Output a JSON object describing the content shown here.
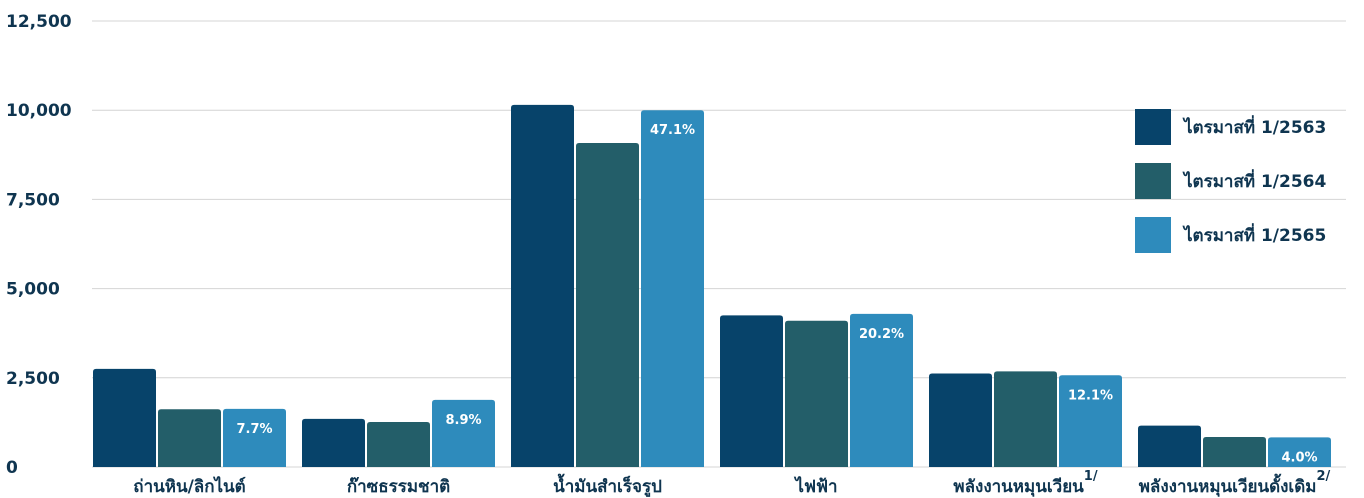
{
  "chart_data": {
    "type": "bar",
    "categories": [
      {
        "label": "ถ่านหิน/ลิกไนต์",
        "sup": ""
      },
      {
        "label": "ก๊าซธรรมชาติ",
        "sup": ""
      },
      {
        "label": "น้ำมันสำเร็จรูป",
        "sup": ""
      },
      {
        "label": "ไฟฟ้า",
        "sup": ""
      },
      {
        "label": "พลังงานหมุนเวียน",
        "sup": "1/"
      },
      {
        "label": "พลังงานหมุนเวียนดั้งเดิม",
        "sup": "2/"
      }
    ],
    "series": [
      {
        "name": "ไตรมาสที่ 1/2563",
        "color": "#07436a",
        "values": [
          2750,
          1350,
          10150,
          4250,
          2620,
          1160
        ]
      },
      {
        "name": "ไตรมาสที่ 1/2564",
        "color": "#235e69",
        "values": [
          1620,
          1260,
          9080,
          4100,
          2680,
          840
        ]
      },
      {
        "name": "ไตรมาสที่ 1/2565",
        "color": "#2e8bbc",
        "values": [
          1630,
          1880,
          10000,
          4290,
          2570,
          830
        ]
      }
    ],
    "data_labels": [
      "7.7%",
      "8.9%",
      "47.1%",
      "20.2%",
      "12.1%",
      "4.0%"
    ],
    "y_ticks": [
      "0",
      "2,500",
      "5,000",
      "7,500",
      "10,000",
      "12,500"
    ],
    "ylim": [
      0,
      12500
    ],
    "grid": true,
    "legend": "right",
    "title": "",
    "xlabel": "",
    "ylabel": ""
  }
}
